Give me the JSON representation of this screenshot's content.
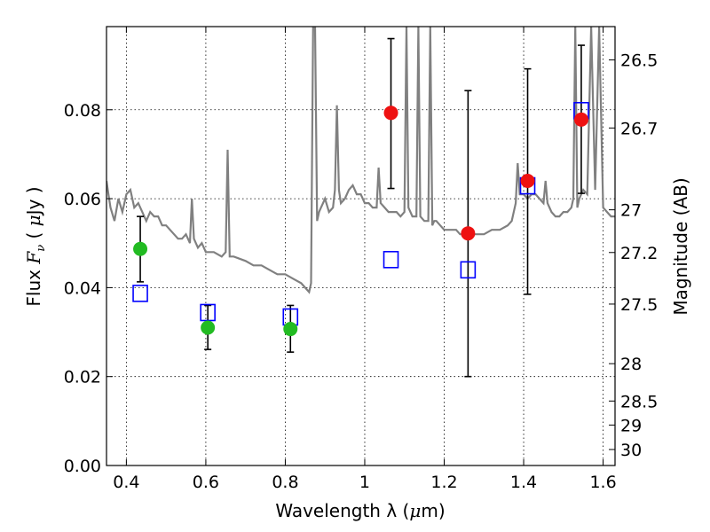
{
  "chart_data": {
    "type": "scatter",
    "xlabel_prefix": "Wavelength  λ (",
    "xlabel_unit": "μ",
    "xlabel_suffix": "m)",
    "ylabel_prefix": "Flux  ",
    "ylabel_var": "F",
    "ylabel_sub": "ν",
    "ylabel_mid": "  (  ",
    "ylabel_unit": "μ",
    "ylabel_suffix": "Jy  )",
    "y2label": "Magnitude (AB)",
    "xlim": [
      0.35,
      1.63
    ],
    "ylim": [
      0.0,
      0.0987
    ],
    "grid": true,
    "x_ticks": [
      0.4,
      0.6,
      0.8,
      1.0,
      1.2,
      1.4,
      1.6
    ],
    "x_tick_labels": [
      "0.4",
      "0.6",
      "0.8",
      "1",
      "1.2",
      "1.4",
      "1.6"
    ],
    "y_ticks": [
      0.0,
      0.02,
      0.04,
      0.06,
      0.08
    ],
    "y_tick_labels": [
      "0.00",
      "0.02",
      "0.04",
      "0.06",
      "0.08"
    ],
    "mag_ticks": [
      {
        "label": "26.5",
        "flux": 0.0912
      },
      {
        "label": "26.7",
        "flux": 0.0759
      },
      {
        "label": "27",
        "flux": 0.0575
      },
      {
        "label": "27.2",
        "flux": 0.0479
      },
      {
        "label": "27.5",
        "flux": 0.0363
      },
      {
        "label": "28",
        "flux": 0.0229
      },
      {
        "label": "28.5",
        "flux": 0.0145
      },
      {
        "label": "29",
        "flux": 0.0091
      },
      {
        "label": "30",
        "flux": 0.0036
      }
    ],
    "series": [
      {
        "kind": "line",
        "color": "#808080",
        "x": [
          0.35,
          0.355,
          0.36,
          0.37,
          0.38,
          0.39,
          0.4,
          0.41,
          0.42,
          0.43,
          0.44,
          0.45,
          0.46,
          0.47,
          0.48,
          0.49,
          0.5,
          0.51,
          0.52,
          0.53,
          0.54,
          0.55,
          0.56,
          0.565,
          0.57,
          0.575,
          0.58,
          0.59,
          0.6,
          0.62,
          0.64,
          0.65,
          0.655,
          0.66,
          0.665,
          0.67,
          0.7,
          0.72,
          0.74,
          0.76,
          0.78,
          0.8,
          0.82,
          0.84,
          0.85,
          0.86,
          0.865,
          0.87,
          0.875,
          0.88,
          0.885,
          0.89,
          0.895,
          0.9,
          0.91,
          0.92,
          0.925,
          0.93,
          0.935,
          0.94,
          0.95,
          0.96,
          0.97,
          0.98,
          0.99,
          1.0,
          1.01,
          1.02,
          1.03,
          1.035,
          1.04,
          1.05,
          1.06,
          1.07,
          1.08,
          1.09,
          1.1,
          1.105,
          1.11,
          1.12,
          1.13,
          1.135,
          1.14,
          1.15,
          1.16,
          1.165,
          1.17,
          1.175,
          1.18,
          1.19,
          1.2,
          1.21,
          1.22,
          1.23,
          1.24,
          1.25,
          1.26,
          1.28,
          1.3,
          1.32,
          1.34,
          1.36,
          1.37,
          1.38,
          1.385,
          1.39,
          1.4,
          1.41,
          1.42,
          1.43,
          1.44,
          1.45,
          1.455,
          1.46,
          1.47,
          1.48,
          1.49,
          1.5,
          1.51,
          1.52,
          1.525,
          1.53,
          1.535,
          1.54,
          1.55,
          1.56,
          1.57,
          1.58,
          1.59,
          1.6,
          1.61,
          1.62,
          1.63
        ],
        "y": [
          0.064,
          0.061,
          0.058,
          0.055,
          0.06,
          0.057,
          0.061,
          0.062,
          0.058,
          0.059,
          0.057,
          0.055,
          0.057,
          0.056,
          0.056,
          0.054,
          0.054,
          0.053,
          0.052,
          0.051,
          0.051,
          0.052,
          0.05,
          0.06,
          0.051,
          0.05,
          0.049,
          0.05,
          0.048,
          0.048,
          0.047,
          0.048,
          0.071,
          0.047,
          0.047,
          0.047,
          0.046,
          0.045,
          0.045,
          0.044,
          0.043,
          0.043,
          0.042,
          0.041,
          0.04,
          0.039,
          0.041,
          0.0987,
          0.0987,
          0.055,
          0.057,
          0.058,
          0.059,
          0.06,
          0.057,
          0.058,
          0.062,
          0.081,
          0.062,
          0.059,
          0.06,
          0.062,
          0.063,
          0.061,
          0.061,
          0.059,
          0.059,
          0.058,
          0.058,
          0.067,
          0.059,
          0.058,
          0.057,
          0.057,
          0.057,
          0.056,
          0.057,
          0.0987,
          0.058,
          0.056,
          0.056,
          0.0987,
          0.056,
          0.055,
          0.055,
          0.0987,
          0.054,
          0.055,
          0.055,
          0.054,
          0.053,
          0.053,
          0.053,
          0.053,
          0.052,
          0.052,
          0.052,
          0.052,
          0.052,
          0.053,
          0.053,
          0.054,
          0.055,
          0.059,
          0.068,
          0.061,
          0.061,
          0.06,
          0.061,
          0.061,
          0.06,
          0.059,
          0.064,
          0.059,
          0.057,
          0.056,
          0.056,
          0.057,
          0.057,
          0.058,
          0.06,
          0.0987,
          0.058,
          0.06,
          0.062,
          0.061,
          0.0987,
          0.062,
          0.0987,
          0.058,
          0.057,
          0.056,
          0.056
        ]
      },
      {
        "kind": "squares",
        "color": "#0000ff",
        "x": [
          0.435,
          0.605,
          0.813,
          1.066,
          1.26,
          1.41,
          1.545
        ],
        "y": [
          0.0387,
          0.0344,
          0.0334,
          0.0463,
          0.044,
          0.0629,
          0.0798
        ]
      },
      {
        "kind": "points",
        "color": "#22bb22",
        "x": [
          0.435,
          0.605,
          0.813
        ],
        "y": [
          0.0487,
          0.031,
          0.0307
        ],
        "yerr_low": [
          0.0413,
          0.0261,
          0.0255
        ],
        "yerr_high": [
          0.056,
          0.036,
          0.036
        ]
      },
      {
        "kind": "points",
        "color": "#ee1111",
        "x": [
          1.066,
          1.26,
          1.41,
          1.545
        ],
        "y": [
          0.0793,
          0.0522,
          0.064,
          0.0778
        ],
        "yerr_low": [
          0.0623,
          0.02,
          0.0385,
          0.0612
        ],
        "yerr_high": [
          0.096,
          0.0843,
          0.0892,
          0.0945
        ]
      }
    ]
  }
}
